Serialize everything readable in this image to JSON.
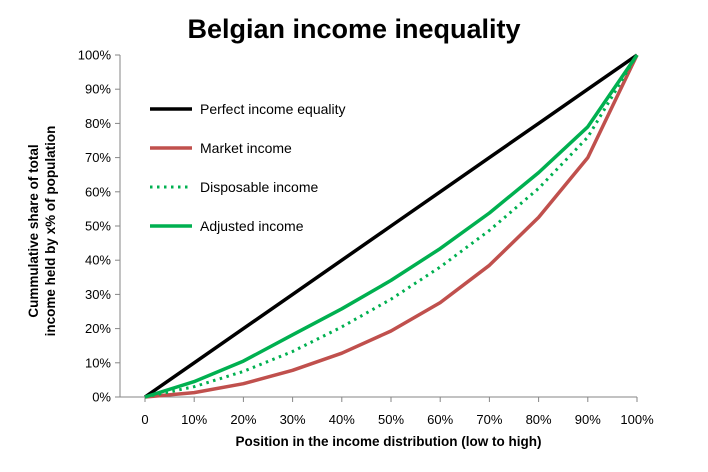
{
  "chart_data": {
    "type": "line",
    "title": "Belgian income inequality",
    "xlabel": "Position in the income distribution (low to high)",
    "ylabel_lines": [
      "Cummulative share of total",
      "income held by x% of population"
    ],
    "x": [
      0,
      10,
      20,
      30,
      40,
      50,
      60,
      70,
      80,
      90,
      100
    ],
    "x_tick_labels": [
      "0",
      "10%",
      "20%",
      "30%",
      "40%",
      "50%",
      "60%",
      "70%",
      "80%",
      "90%",
      "100%"
    ],
    "y_tick_labels": [
      "0%",
      "10%",
      "20%",
      "30%",
      "40%",
      "50%",
      "60%",
      "70%",
      "80%",
      "90%",
      "100%"
    ],
    "xlim": [
      0,
      100
    ],
    "ylim": [
      0,
      100
    ],
    "grid": false,
    "legend_position": "top-left",
    "series": [
      {
        "name": "Perfect income equality",
        "color": "#000000",
        "style": "solid",
        "values": [
          0,
          10,
          20,
          30,
          40,
          50,
          60,
          70,
          80,
          90,
          100
        ]
      },
      {
        "name": "Market income",
        "color": "#c0504d",
        "style": "solid",
        "values": [
          0,
          1.3,
          3.9,
          7.8,
          12.8,
          19.3,
          27.6,
          38.5,
          52.5,
          70,
          100
        ]
      },
      {
        "name": "Disposable income",
        "color": "#00b050",
        "style": "dotted",
        "values": [
          0,
          3,
          7.5,
          13.3,
          20.5,
          28.6,
          38,
          48.7,
          61,
          76,
          100
        ]
      },
      {
        "name": "Adjusted income",
        "color": "#00b050",
        "style": "solid",
        "values": [
          0,
          4.5,
          10.5,
          18.2,
          25.8,
          34.1,
          43.4,
          53.8,
          65.6,
          79,
          100
        ]
      }
    ]
  }
}
